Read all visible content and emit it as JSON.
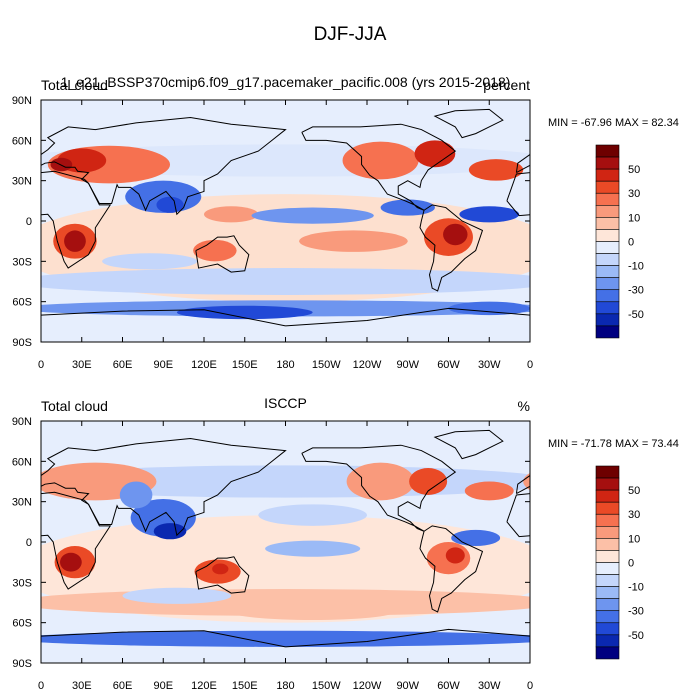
{
  "title": "DJF-JJA",
  "panels": [
    {
      "left_title": "Total cloud",
      "center_title": "1_e21_BSSP370cmip6.f09_g17.pacemaker_pacific.008 (yrs 2015-2018)",
      "right_title": "percent",
      "min_max": "MIN = -67.96 MAX =  82.34",
      "colorbar_ticks": [
        50,
        30,
        10,
        0,
        -10,
        -30,
        -50
      ]
    },
    {
      "left_title": "Total cloud",
      "center_title": "ISCCP",
      "right_title": "%",
      "min_max": "MIN = -71.78 MAX =  73.44",
      "colorbar_ticks": [
        50,
        30,
        10,
        0,
        -10,
        -30,
        -50
      ]
    }
  ],
  "lat_ticks": [
    "90N",
    "60N",
    "30N",
    "0",
    "30S",
    "60S",
    "90S"
  ],
  "lon_ticks": [
    "0",
    "30E",
    "60E",
    "90E",
    "120E",
    "150E",
    "180",
    "150W",
    "120W",
    "90W",
    "60W",
    "30W",
    "0"
  ],
  "colorbar_colors": [
    "#6e0000",
    "#a50f0f",
    "#d02513",
    "#ea4a26",
    "#f67150",
    "#f99a7c",
    "#fcc0a7",
    "#fee6d9",
    "#e6eefd",
    "#c4d6fb",
    "#9bbaf6",
    "#6e95ef",
    "#4470e6",
    "#2149d6",
    "#0a28b0",
    "#000080"
  ]
}
